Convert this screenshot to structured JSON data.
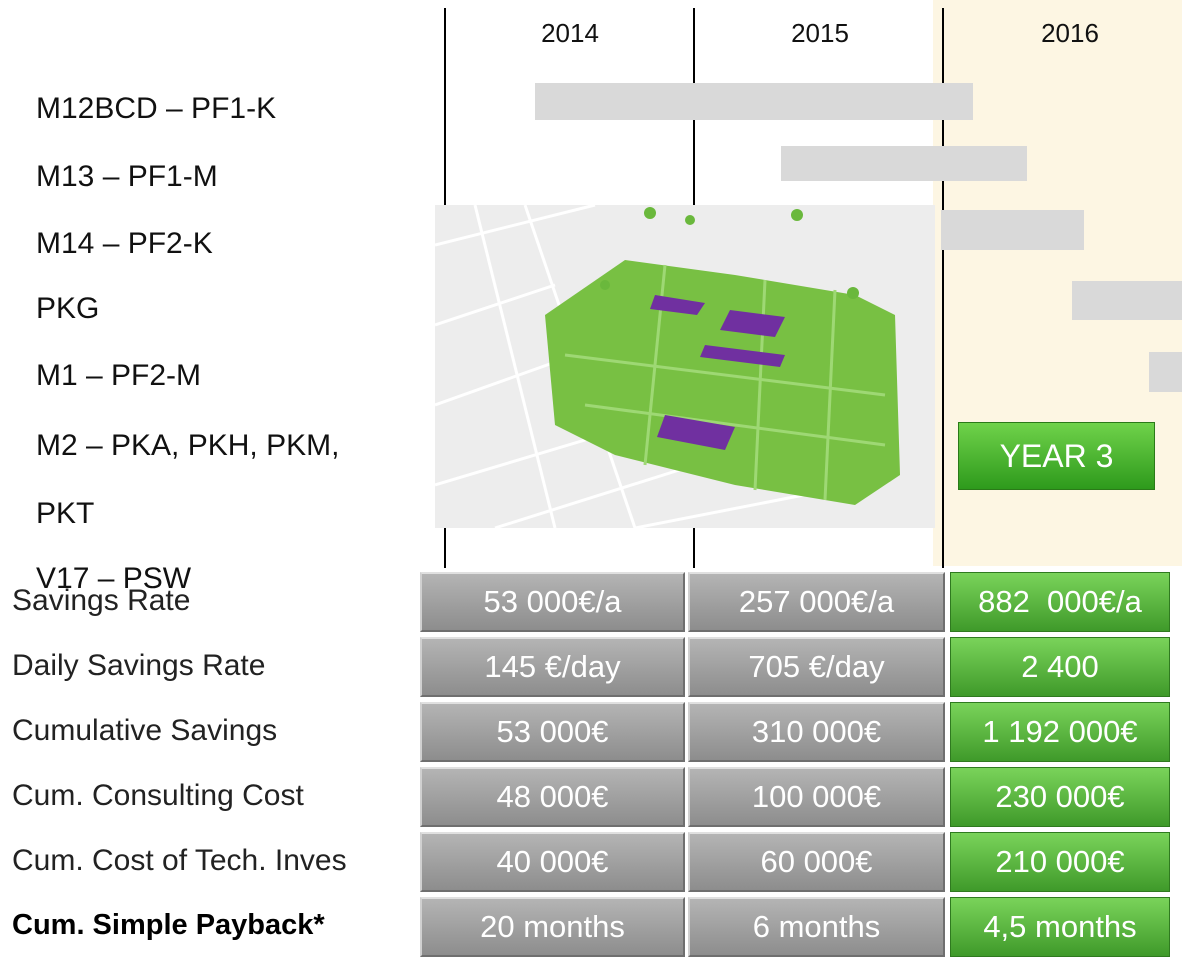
{
  "header": {
    "years": [
      "2014",
      "2015",
      "2016"
    ]
  },
  "tasks": [
    "M12BCD – PF1-K",
    "M13 – PF1-M",
    "M14 – PF2-K",
    "PKG",
    "M1 – PF2-M",
    "M2 – PKA, PKH, PKM,",
    "PKT",
    "V17 – PSW"
  ],
  "button": "YEAR 3",
  "table": {
    "rows": [
      [
        "Savings Rate",
        "53 000€/a",
        "257 000€/a",
        "882  000€/a"
      ],
      [
        "Daily Savings Rate",
        "145 €/day",
        "705 €/day",
        "2 400"
      ],
      [
        "Cumulative Savings",
        "53 000€",
        "310 000€",
        "1 192 000€"
      ],
      [
        "Cum. Consulting Cost",
        "48 000€",
        "100 000€",
        "230 000€"
      ],
      [
        "Cum. Cost of Tech. Inves",
        "40 000€",
        "60 000€",
        "210 000€"
      ],
      [
        "Cum. Simple Payback*",
        "20 months",
        "6 months",
        "4,5 months"
      ]
    ]
  }
}
